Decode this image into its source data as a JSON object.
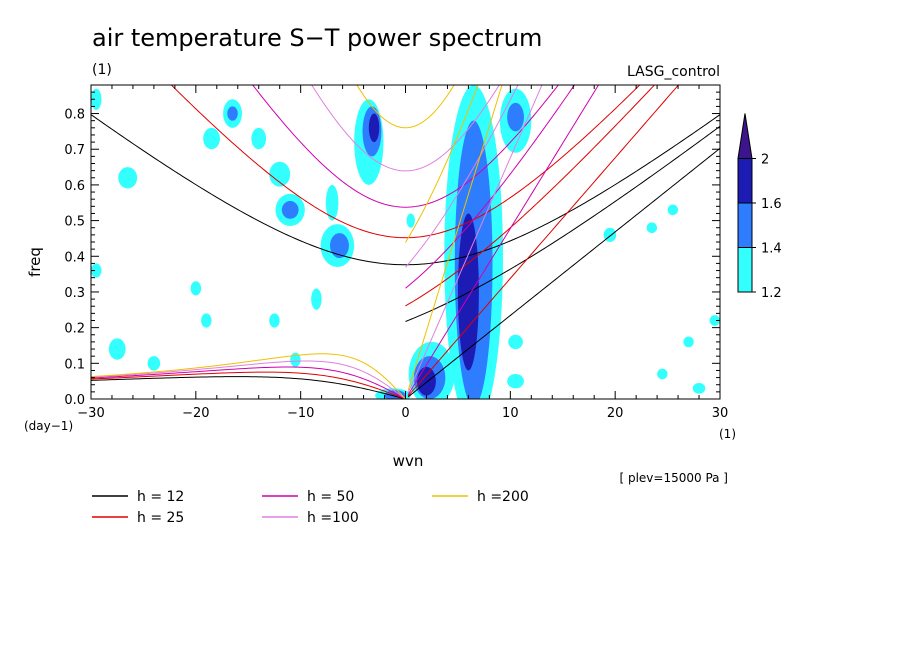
{
  "chart_data": {
    "type": "heatmap",
    "title": "air temperature S−T power spectrum",
    "subtitle_left": "(1)",
    "subtitle_right": "LASG_control",
    "xlabel": "wvn",
    "ylabel": "freq",
    "x_unit": "(1)",
    "y_unit": "(day−1)",
    "note": "[ plev=15000 Pa ]",
    "xlim": [
      -30,
      30
    ],
    "ylim": [
      0,
      0.88
    ],
    "xticks": [
      -30,
      -20,
      -10,
      0,
      10,
      20,
      30
    ],
    "xtick_labels": [
      "−30",
      "−20",
      "−10",
      "0",
      "10",
      "20",
      "30"
    ],
    "yticks": [
      0,
      0.1,
      0.2,
      0.3,
      0.4,
      0.5,
      0.6,
      0.7,
      0.8
    ],
    "ytick_labels": [
      "0.0",
      "0.1",
      "0.2",
      "0.3",
      "0.4",
      "0.5",
      "0.6",
      "0.7",
      "0.8"
    ],
    "colorbar": {
      "levels": [
        1.2,
        1.4,
        1.6,
        2
      ],
      "labels": [
        "1.2",
        "1.4",
        "1.6",
        "2"
      ],
      "colors": [
        "#33ffff",
        "#2e7dff",
        "#1c1cb4",
        "#3c148c"
      ]
    },
    "dispersion_curves": [
      {
        "name": "h = 12",
        "h": 12,
        "color": "#000000"
      },
      {
        "name": "h = 25",
        "h": 25,
        "color": "#e00000"
      },
      {
        "name": "h = 50",
        "h": 50,
        "color": "#d000b0"
      },
      {
        "name": "h =100",
        "h": 100,
        "color": "#e080e0"
      },
      {
        "name": "h =200",
        "h": 200,
        "color": "#f0c000"
      }
    ],
    "spectral_regions": [
      {
        "level": 1,
        "x": 6.5,
        "y": 0.4,
        "rx": 2.8,
        "ry": 0.48
      },
      {
        "level": 2,
        "x": 6.5,
        "y": 0.38,
        "rx": 1.8,
        "ry": 0.4
      },
      {
        "level": 3,
        "x": 6,
        "y": 0.3,
        "rx": 1.0,
        "ry": 0.22
      },
      {
        "level": 1,
        "x": 2.5,
        "y": 0.07,
        "rx": 2.2,
        "ry": 0.09
      },
      {
        "level": 2,
        "x": 2.3,
        "y": 0.06,
        "rx": 1.5,
        "ry": 0.06
      },
      {
        "level": 3,
        "x": 2.0,
        "y": 0.05,
        "rx": 0.9,
        "ry": 0.04
      },
      {
        "level": 1,
        "x": -1.2,
        "y": 0.01,
        "rx": 1.7,
        "ry": 0.02
      },
      {
        "level": 2,
        "x": -1.0,
        "y": 0.01,
        "rx": 1.0,
        "ry": 0.015
      },
      {
        "level": 1,
        "x": -3.5,
        "y": 0.72,
        "rx": 1.4,
        "ry": 0.12
      },
      {
        "level": 2,
        "x": -3.2,
        "y": 0.75,
        "rx": 0.9,
        "ry": 0.07
      },
      {
        "level": 3,
        "x": -3.0,
        "y": 0.76,
        "rx": 0.5,
        "ry": 0.04
      },
      {
        "level": 1,
        "x": -6.5,
        "y": 0.43,
        "rx": 1.6,
        "ry": 0.06
      },
      {
        "level": 2,
        "x": -6.3,
        "y": 0.43,
        "rx": 0.9,
        "ry": 0.035
      },
      {
        "level": 1,
        "x": -11,
        "y": 0.53,
        "rx": 1.4,
        "ry": 0.045
      },
      {
        "level": 2,
        "x": -11,
        "y": 0.53,
        "rx": 0.8,
        "ry": 0.025
      },
      {
        "level": 1,
        "x": -16.5,
        "y": 0.8,
        "rx": 0.9,
        "ry": 0.04
      },
      {
        "level": 2,
        "x": -16.5,
        "y": 0.8,
        "rx": 0.5,
        "ry": 0.02
      },
      {
        "level": 1,
        "x": -18.5,
        "y": 0.73,
        "rx": 0.8,
        "ry": 0.03
      },
      {
        "level": 1,
        "x": -14,
        "y": 0.73,
        "rx": 0.7,
        "ry": 0.03
      },
      {
        "level": 1,
        "x": -12,
        "y": 0.63,
        "rx": 1.0,
        "ry": 0.035
      },
      {
        "level": 1,
        "x": -26.5,
        "y": 0.62,
        "rx": 0.9,
        "ry": 0.03
      },
      {
        "level": 1,
        "x": -29.5,
        "y": 0.84,
        "rx": 0.5,
        "ry": 0.03
      },
      {
        "level": 1,
        "x": 10.5,
        "y": 0.78,
        "rx": 1.5,
        "ry": 0.09
      },
      {
        "level": 2,
        "x": 10.5,
        "y": 0.79,
        "rx": 0.8,
        "ry": 0.04
      },
      {
        "level": 1,
        "x": 10.5,
        "y": 0.16,
        "rx": 0.7,
        "ry": 0.02
      },
      {
        "level": 1,
        "x": 10.5,
        "y": 0.05,
        "rx": 0.8,
        "ry": 0.02
      },
      {
        "level": 1,
        "x": -27.5,
        "y": 0.14,
        "rx": 0.8,
        "ry": 0.03
      },
      {
        "level": 1,
        "x": -24,
        "y": 0.1,
        "rx": 0.6,
        "ry": 0.02
      },
      {
        "level": 1,
        "x": -19,
        "y": 0.22,
        "rx": 0.5,
        "ry": 0.02
      },
      {
        "level": 1,
        "x": -12.5,
        "y": 0.22,
        "rx": 0.5,
        "ry": 0.02
      },
      {
        "level": 1,
        "x": -10.5,
        "y": 0.11,
        "rx": 0.5,
        "ry": 0.02
      },
      {
        "level": 1,
        "x": -20,
        "y": 0.31,
        "rx": 0.5,
        "ry": 0.02
      },
      {
        "level": 1,
        "x": 19.5,
        "y": 0.46,
        "rx": 0.6,
        "ry": 0.02
      },
      {
        "level": 1,
        "x": 23.5,
        "y": 0.48,
        "rx": 0.5,
        "ry": 0.015
      },
      {
        "level": 1,
        "x": 25.5,
        "y": 0.53,
        "rx": 0.5,
        "ry": 0.015
      },
      {
        "level": 1,
        "x": 27,
        "y": 0.16,
        "rx": 0.5,
        "ry": 0.015
      },
      {
        "level": 1,
        "x": 24.5,
        "y": 0.07,
        "rx": 0.5,
        "ry": 0.015
      },
      {
        "level": 1,
        "x": 29.5,
        "y": 0.22,
        "rx": 0.5,
        "ry": 0.015
      },
      {
        "level": 1,
        "x": 28,
        "y": 0.03,
        "rx": 0.6,
        "ry": 0.015
      },
      {
        "level": 1,
        "x": -7,
        "y": 0.55,
        "rx": 0.6,
        "ry": 0.05
      },
      {
        "level": 1,
        "x": -8.5,
        "y": 0.28,
        "rx": 0.5,
        "ry": 0.03
      },
      {
        "level": 1,
        "x": 0.5,
        "y": 0.5,
        "rx": 0.4,
        "ry": 0.02
      },
      {
        "level": 1,
        "x": -29.5,
        "y": 0.36,
        "rx": 0.5,
        "ry": 0.02
      }
    ]
  }
}
